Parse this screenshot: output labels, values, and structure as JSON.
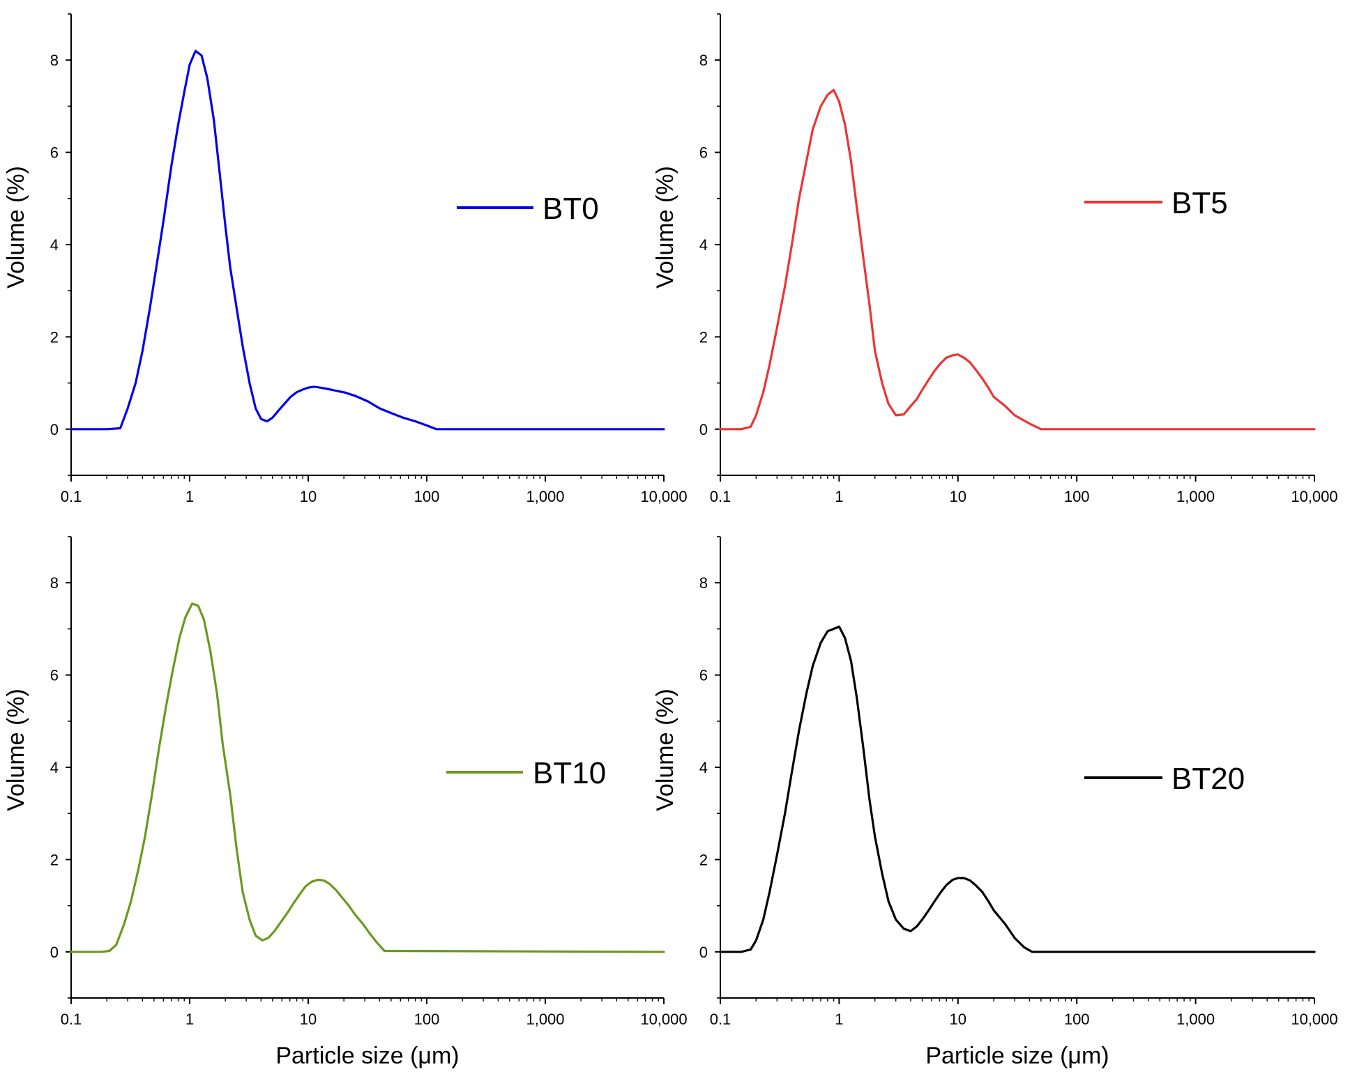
{
  "chart_data": [
    {
      "type": "line",
      "panel": "top-left",
      "series": [
        {
          "name": "BT0",
          "color": "#0000ee",
          "x": [
            0.1,
            0.2,
            0.26,
            0.3,
            0.35,
            0.4,
            0.46,
            0.53,
            0.6,
            0.7,
            0.8,
            0.9,
            1.0,
            1.12,
            1.26,
            1.41,
            1.6,
            1.8,
            2.0,
            2.2,
            2.5,
            2.8,
            3.2,
            3.6,
            4.0,
            4.5,
            5.0,
            5.6,
            6.3,
            7.1,
            8.0,
            9.0,
            10,
            11.2,
            12.6,
            14,
            16,
            18,
            20,
            25,
            32,
            40,
            50,
            63,
            80,
            100,
            120,
            10000
          ],
          "y": [
            0,
            0,
            0.02,
            0.45,
            1.0,
            1.7,
            2.6,
            3.6,
            4.5,
            5.7,
            6.6,
            7.3,
            7.9,
            8.2,
            8.1,
            7.6,
            6.7,
            5.5,
            4.4,
            3.5,
            2.6,
            1.8,
            1.0,
            0.45,
            0.22,
            0.17,
            0.25,
            0.4,
            0.55,
            0.7,
            0.8,
            0.86,
            0.9,
            0.92,
            0.9,
            0.88,
            0.85,
            0.82,
            0.8,
            0.72,
            0.6,
            0.45,
            0.35,
            0.25,
            0.17,
            0.08,
            0.0,
            0
          ]
        }
      ],
      "xlim": [
        0.1,
        10000
      ],
      "ylim": [
        -1,
        9
      ],
      "xticks": [
        "0.1",
        "1",
        "10",
        "100",
        "1,000",
        "10,000"
      ],
      "yticks": [
        "0",
        "2",
        "4",
        "6",
        "8"
      ],
      "xlabel": "",
      "ylabel": "Volume (%)",
      "legend": "BT0",
      "legend_position": "upper-right"
    },
    {
      "type": "line",
      "panel": "top-right",
      "series": [
        {
          "name": "BT5",
          "color": "#ee3333",
          "x": [
            0.1,
            0.15,
            0.18,
            0.2,
            0.23,
            0.26,
            0.3,
            0.35,
            0.4,
            0.46,
            0.53,
            0.6,
            0.7,
            0.8,
            0.9,
            1.0,
            1.12,
            1.26,
            1.41,
            1.6,
            1.8,
            2.0,
            2.3,
            2.6,
            3.0,
            3.5,
            4.0,
            4.5,
            5.0,
            5.6,
            6.3,
            7.1,
            8.0,
            9.0,
            10,
            11.2,
            12.6,
            14,
            16,
            18,
            20,
            25,
            30,
            40,
            50,
            10000
          ],
          "y": [
            0,
            0,
            0.05,
            0.3,
            0.8,
            1.4,
            2.2,
            3.1,
            4.0,
            5.0,
            5.8,
            6.5,
            7.0,
            7.25,
            7.35,
            7.1,
            6.6,
            5.8,
            4.8,
            3.7,
            2.7,
            1.7,
            1.0,
            0.55,
            0.3,
            0.32,
            0.5,
            0.65,
            0.85,
            1.05,
            1.25,
            1.42,
            1.55,
            1.6,
            1.62,
            1.55,
            1.45,
            1.3,
            1.1,
            0.9,
            0.7,
            0.5,
            0.3,
            0.12,
            0.0,
            0
          ]
        }
      ],
      "xlim": [
        0.1,
        10000
      ],
      "ylim": [
        -1,
        9
      ],
      "xticks": [
        "0.1",
        "1",
        "10",
        "100",
        "1,000",
        "10,000"
      ],
      "yticks": [
        "0",
        "2",
        "4",
        "6",
        "8"
      ],
      "xlabel": "",
      "ylabel": "Volume (%)",
      "legend": "BT5",
      "legend_position": "upper-right"
    },
    {
      "type": "line",
      "panel": "bottom-left",
      "series": [
        {
          "name": "BT10",
          "color": "#6b9a1e",
          "x": [
            0.1,
            0.18,
            0.21,
            0.24,
            0.28,
            0.32,
            0.37,
            0.42,
            0.48,
            0.55,
            0.63,
            0.72,
            0.82,
            0.92,
            1.05,
            1.18,
            1.32,
            1.5,
            1.7,
            1.9,
            2.2,
            2.5,
            2.8,
            3.2,
            3.6,
            4.1,
            4.6,
            5.2,
            5.9,
            6.7,
            7.5,
            8.5,
            9.5,
            10.7,
            12,
            13.5,
            15,
            17,
            19,
            22,
            25,
            29,
            33,
            38,
            44,
            10000
          ],
          "y": [
            0,
            0,
            0.02,
            0.15,
            0.6,
            1.1,
            1.8,
            2.5,
            3.4,
            4.4,
            5.3,
            6.1,
            6.8,
            7.25,
            7.55,
            7.5,
            7.2,
            6.5,
            5.6,
            4.5,
            3.4,
            2.2,
            1.3,
            0.7,
            0.35,
            0.25,
            0.3,
            0.45,
            0.65,
            0.85,
            1.05,
            1.25,
            1.42,
            1.52,
            1.56,
            1.55,
            1.48,
            1.35,
            1.2,
            1.0,
            0.8,
            0.6,
            0.4,
            0.2,
            0.02,
            0
          ]
        }
      ],
      "xlim": [
        0.1,
        10000
      ],
      "ylim": [
        -1,
        9
      ],
      "xticks": [
        "0.1",
        "1",
        "10",
        "100",
        "1,000",
        "10,000"
      ],
      "yticks": [
        "0",
        "2",
        "4",
        "6",
        "8"
      ],
      "xlabel": "Particle size (μm)",
      "ylabel": "Volume (%)",
      "legend": "BT10",
      "legend_position": "center-right"
    },
    {
      "type": "line",
      "panel": "bottom-right",
      "series": [
        {
          "name": "BT20",
          "color": "#000000",
          "x": [
            0.1,
            0.15,
            0.18,
            0.2,
            0.23,
            0.26,
            0.3,
            0.35,
            0.4,
            0.46,
            0.53,
            0.6,
            0.7,
            0.8,
            0.9,
            1.0,
            1.12,
            1.26,
            1.41,
            1.6,
            1.8,
            2.0,
            2.3,
            2.6,
            3.0,
            3.5,
            4.0,
            4.5,
            5.0,
            5.6,
            6.3,
            7.1,
            8.0,
            9.0,
            10,
            11.2,
            12.6,
            14,
            16,
            18,
            20,
            25,
            30,
            36,
            42,
            10000
          ],
          "y": [
            0,
            0,
            0.05,
            0.25,
            0.7,
            1.3,
            2.1,
            3.0,
            3.9,
            4.8,
            5.6,
            6.2,
            6.7,
            6.95,
            7.0,
            7.05,
            6.8,
            6.3,
            5.5,
            4.4,
            3.3,
            2.5,
            1.7,
            1.1,
            0.7,
            0.5,
            0.45,
            0.55,
            0.7,
            0.88,
            1.08,
            1.28,
            1.45,
            1.56,
            1.6,
            1.6,
            1.55,
            1.45,
            1.3,
            1.1,
            0.9,
            0.6,
            0.3,
            0.1,
            0.0,
            0
          ]
        }
      ],
      "xlim": [
        0.1,
        10000
      ],
      "ylim": [
        -1,
        9
      ],
      "xticks": [
        "0.1",
        "1",
        "10",
        "100",
        "1,000",
        "10,000"
      ],
      "yticks": [
        "0",
        "2",
        "4",
        "6",
        "8"
      ],
      "xlabel": "Particle size (μm)",
      "ylabel": "Volume (%)",
      "legend": "BT20",
      "legend_position": "center-right"
    }
  ]
}
